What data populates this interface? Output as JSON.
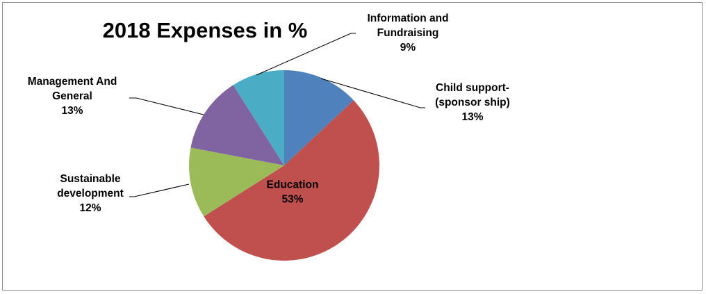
{
  "chart_data": {
    "type": "pie",
    "title": "2018 Expenses in %",
    "slices": [
      {
        "name": "Child support-(sponsor ship)",
        "label_lines": [
          "Child support-",
          "(sponsor ship)",
          "13%"
        ],
        "value": 13,
        "color": "#4F81BD"
      },
      {
        "name": "Education",
        "label_lines": [
          "Education",
          "53%"
        ],
        "value": 53,
        "color": "#C0504D"
      },
      {
        "name": "Sustainable development",
        "label_lines": [
          "Sustainable",
          "development",
          "12%"
        ],
        "value": 12,
        "color": "#9BBB59"
      },
      {
        "name": "Management And General",
        "label_lines": [
          "Management And",
          "General",
          "13%"
        ],
        "value": 13,
        "color": "#8064A2"
      },
      {
        "name": "Information and Fundraising",
        "label_lines": [
          "Information and",
          "Fundraising",
          "9%"
        ],
        "value": 9,
        "color": "#4BACC6"
      }
    ],
    "start": "12 o'clock",
    "direction": "clockwise",
    "legend": "none"
  }
}
